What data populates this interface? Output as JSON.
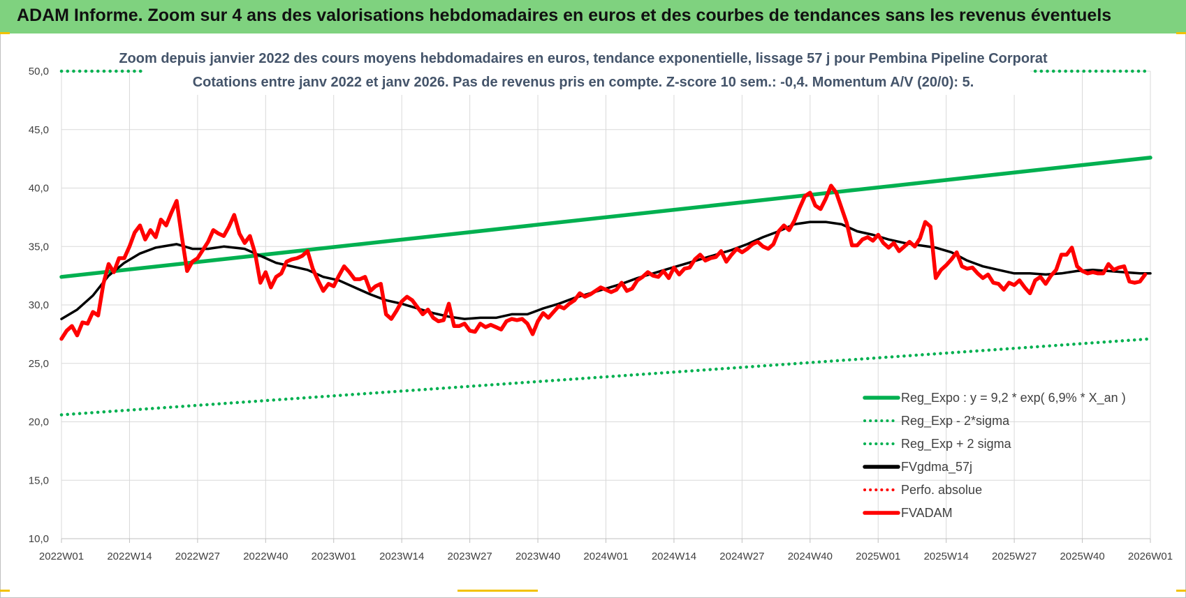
{
  "header": {
    "title": "ADAM Informe. Zoom sur 4 ans des valorisations hebdomadaires en euros et des courbes de tendances sans les revenus éventuels"
  },
  "colors": {
    "banner": "#7fd27f",
    "reg_green": "#00b050",
    "gdma": "#000000",
    "price": "#ff0000",
    "title_text": "#44546a"
  },
  "chart_data": {
    "type": "line",
    "title_line1": "Zoom depuis janvier 2022 des cours moyens hebdomadaires en euros, tendance exponentielle, lissage 57 j pour Pembina Pipeline Corporat",
    "title_line2": "Cotations entre janv 2022 et janv 2026. Pas de revenus pris en compte. Z-score 10 sem.: -0,4. Momentum A/V (20/0): 5.",
    "ylim": [
      10,
      50
    ],
    "ytick_values": [
      10,
      15,
      20,
      25,
      30,
      35,
      40,
      45,
      50
    ],
    "yticks": [
      "10,0",
      "15,0",
      "20,0",
      "25,0",
      "30,0",
      "35,0",
      "40,0",
      "45,0",
      "50,0"
    ],
    "x_range_weeks": [
      0,
      208
    ],
    "xtick_weeks": [
      0,
      13,
      26,
      39,
      52,
      65,
      78,
      91,
      104,
      117,
      130,
      143,
      156,
      169,
      182,
      195,
      208
    ],
    "xticks": [
      "2022W01",
      "2022W14",
      "2022W27",
      "2022W40",
      "2023W01",
      "2023W14",
      "2023W27",
      "2023W40",
      "2024W01",
      "2024W14",
      "2024W27",
      "2024W40",
      "2025W01",
      "2025W14",
      "2025W27",
      "2025W40",
      "2026W01"
    ],
    "legend_position": "bottom-right",
    "grid": true,
    "series": [
      {
        "name": "Reg_Expo : y = 9,2 * exp( 6,9% *  X_an )",
        "style": "solid",
        "color": "#00b050",
        "points": [
          [
            0,
            32.4
          ],
          [
            208,
            42.6
          ]
        ]
      },
      {
        "name": "Reg_Exp - 2*sigma",
        "style": "dotted",
        "color": "#00b050",
        "points": [
          [
            0,
            20.6
          ],
          [
            208,
            27.1
          ]
        ]
      },
      {
        "name": "Reg_Exp + 2 sigma",
        "style": "dotted",
        "color": "#00b050",
        "points": [
          [
            0,
            50.0
          ],
          [
            16,
            50.0
          ],
          [
            186,
            50.0
          ],
          [
            208,
            50.0
          ]
        ]
      },
      {
        "name": "FVgdma_57j",
        "style": "solid",
        "color": "#000000",
        "points": [
          [
            0,
            28.8
          ],
          [
            3,
            29.6
          ],
          [
            6,
            30.8
          ],
          [
            9,
            32.5
          ],
          [
            12,
            33.6
          ],
          [
            15,
            34.4
          ],
          [
            18,
            34.9
          ],
          [
            22,
            35.2
          ],
          [
            25,
            34.8
          ],
          [
            28,
            34.8
          ],
          [
            31,
            35.0
          ],
          [
            35,
            34.8
          ],
          [
            38,
            34.2
          ],
          [
            41,
            33.6
          ],
          [
            44,
            33.3
          ],
          [
            47,
            33.0
          ],
          [
            50,
            32.4
          ],
          [
            53,
            32.1
          ],
          [
            56,
            31.5
          ],
          [
            59,
            30.9
          ],
          [
            62,
            30.4
          ],
          [
            65,
            30.1
          ],
          [
            68,
            29.7
          ],
          [
            71,
            29.3
          ],
          [
            74,
            29.0
          ],
          [
            77,
            28.8
          ],
          [
            80,
            28.9
          ],
          [
            83,
            28.9
          ],
          [
            86,
            29.2
          ],
          [
            89,
            29.2
          ],
          [
            92,
            29.7
          ],
          [
            95,
            30.1
          ],
          [
            98,
            30.6
          ],
          [
            101,
            31.0
          ],
          [
            104,
            31.4
          ],
          [
            107,
            31.8
          ],
          [
            110,
            32.3
          ],
          [
            113,
            32.7
          ],
          [
            116,
            33.1
          ],
          [
            119,
            33.5
          ],
          [
            122,
            33.9
          ],
          [
            125,
            34.3
          ],
          [
            128,
            34.7
          ],
          [
            131,
            35.2
          ],
          [
            134,
            35.8
          ],
          [
            137,
            36.3
          ],
          [
            140,
            36.9
          ],
          [
            143,
            37.1
          ],
          [
            146,
            37.1
          ],
          [
            149,
            36.9
          ],
          [
            152,
            36.3
          ],
          [
            155,
            36.0
          ],
          [
            158,
            35.6
          ],
          [
            161,
            35.3
          ],
          [
            164,
            35.1
          ],
          [
            167,
            34.9
          ],
          [
            170,
            34.5
          ],
          [
            173,
            33.8
          ],
          [
            176,
            33.3
          ],
          [
            179,
            33.0
          ],
          [
            182,
            32.7
          ],
          [
            185,
            32.7
          ],
          [
            188,
            32.6
          ],
          [
            191,
            32.7
          ],
          [
            194,
            32.9
          ],
          [
            197,
            33.0
          ],
          [
            200,
            32.9
          ],
          [
            203,
            32.8
          ],
          [
            206,
            32.7
          ],
          [
            208,
            32.7
          ]
        ]
      },
      {
        "name": "Perfo. absolue",
        "style": "dotted",
        "color": "#ff0000",
        "points": []
      },
      {
        "name": "FVADAM",
        "style": "solid",
        "color": "#ff0000",
        "points": [
          [
            0,
            27.1
          ],
          [
            1,
            27.8
          ],
          [
            2,
            28.2
          ],
          [
            3,
            27.4
          ],
          [
            4,
            28.5
          ],
          [
            5,
            28.4
          ],
          [
            6,
            29.4
          ],
          [
            7,
            29.1
          ],
          [
            8,
            31.8
          ],
          [
            9,
            33.5
          ],
          [
            10,
            32.8
          ],
          [
            11,
            34.0
          ],
          [
            12,
            34.0
          ],
          [
            13,
            35.0
          ],
          [
            14,
            36.2
          ],
          [
            15,
            36.8
          ],
          [
            16,
            35.6
          ],
          [
            17,
            36.4
          ],
          [
            18,
            35.8
          ],
          [
            19,
            37.3
          ],
          [
            20,
            36.8
          ],
          [
            21,
            37.9
          ],
          [
            22,
            38.9
          ],
          [
            23,
            35.8
          ],
          [
            24,
            32.9
          ],
          [
            25,
            33.7
          ],
          [
            26,
            34.0
          ],
          [
            27,
            34.7
          ],
          [
            28,
            35.4
          ],
          [
            29,
            36.4
          ],
          [
            30,
            36.1
          ],
          [
            31,
            35.9
          ],
          [
            32,
            36.7
          ],
          [
            33,
            37.7
          ],
          [
            34,
            36.1
          ],
          [
            35,
            35.3
          ],
          [
            36,
            35.9
          ],
          [
            37,
            34.4
          ],
          [
            38,
            31.9
          ],
          [
            39,
            32.8
          ],
          [
            40,
            31.5
          ],
          [
            41,
            32.4
          ],
          [
            42,
            32.7
          ],
          [
            43,
            33.7
          ],
          [
            44,
            33.9
          ],
          [
            45,
            34.0
          ],
          [
            46,
            34.2
          ],
          [
            47,
            34.6
          ],
          [
            48,
            33.1
          ],
          [
            49,
            32.1
          ],
          [
            50,
            31.2
          ],
          [
            51,
            31.8
          ],
          [
            52,
            31.6
          ],
          [
            53,
            32.5
          ],
          [
            54,
            33.3
          ],
          [
            55,
            32.8
          ],
          [
            56,
            32.2
          ],
          [
            57,
            32.2
          ],
          [
            58,
            32.4
          ],
          [
            59,
            31.2
          ],
          [
            60,
            31.6
          ],
          [
            61,
            31.8
          ],
          [
            62,
            29.2
          ],
          [
            63,
            28.8
          ],
          [
            64,
            29.5
          ],
          [
            65,
            30.3
          ],
          [
            66,
            30.7
          ],
          [
            67,
            30.4
          ],
          [
            68,
            29.8
          ],
          [
            69,
            29.2
          ],
          [
            70,
            29.6
          ],
          [
            71,
            28.9
          ],
          [
            72,
            28.6
          ],
          [
            73,
            28.7
          ],
          [
            74,
            30.1
          ],
          [
            75,
            28.2
          ],
          [
            76,
            28.2
          ],
          [
            77,
            28.4
          ],
          [
            78,
            27.8
          ],
          [
            79,
            27.7
          ],
          [
            80,
            28.4
          ],
          [
            81,
            28.1
          ],
          [
            82,
            28.3
          ],
          [
            83,
            28.1
          ],
          [
            84,
            27.9
          ],
          [
            85,
            28.6
          ],
          [
            86,
            28.8
          ],
          [
            87,
            28.7
          ],
          [
            88,
            28.8
          ],
          [
            89,
            28.4
          ],
          [
            90,
            27.5
          ],
          [
            91,
            28.6
          ],
          [
            92,
            29.3
          ],
          [
            93,
            28.9
          ],
          [
            94,
            29.4
          ],
          [
            95,
            29.9
          ],
          [
            96,
            29.7
          ],
          [
            97,
            30.1
          ],
          [
            98,
            30.4
          ],
          [
            99,
            31.0
          ],
          [
            100,
            30.7
          ],
          [
            101,
            30.9
          ],
          [
            102,
            31.2
          ],
          [
            103,
            31.5
          ],
          [
            104,
            31.3
          ],
          [
            105,
            31.1
          ],
          [
            106,
            31.3
          ],
          [
            107,
            31.9
          ],
          [
            108,
            31.2
          ],
          [
            109,
            31.4
          ],
          [
            110,
            32.1
          ],
          [
            111,
            32.4
          ],
          [
            112,
            32.8
          ],
          [
            113,
            32.5
          ],
          [
            114,
            32.4
          ],
          [
            115,
            32.9
          ],
          [
            116,
            32.3
          ],
          [
            117,
            33.2
          ],
          [
            118,
            32.6
          ],
          [
            119,
            33.1
          ],
          [
            120,
            33.2
          ],
          [
            121,
            33.9
          ],
          [
            122,
            34.3
          ],
          [
            123,
            33.8
          ],
          [
            124,
            34.0
          ],
          [
            125,
            34.1
          ],
          [
            126,
            34.6
          ],
          [
            127,
            33.7
          ],
          [
            128,
            34.3
          ],
          [
            129,
            34.8
          ],
          [
            130,
            34.5
          ],
          [
            131,
            34.8
          ],
          [
            132,
            35.2
          ],
          [
            133,
            35.4
          ],
          [
            134,
            35.0
          ],
          [
            135,
            34.8
          ],
          [
            136,
            35.2
          ],
          [
            137,
            36.3
          ],
          [
            138,
            36.8
          ],
          [
            139,
            36.4
          ],
          [
            140,
            37.2
          ],
          [
            141,
            38.3
          ],
          [
            142,
            39.3
          ],
          [
            143,
            39.6
          ],
          [
            144,
            38.5
          ],
          [
            145,
            38.2
          ],
          [
            146,
            39.1
          ],
          [
            147,
            40.2
          ],
          [
            148,
            39.6
          ],
          [
            149,
            38.3
          ],
          [
            150,
            37.0
          ],
          [
            151,
            35.1
          ],
          [
            152,
            35.1
          ],
          [
            153,
            35.6
          ],
          [
            154,
            35.8
          ],
          [
            155,
            35.5
          ],
          [
            156,
            36.0
          ],
          [
            157,
            35.3
          ],
          [
            158,
            34.9
          ],
          [
            159,
            35.3
          ],
          [
            160,
            34.6
          ],
          [
            161,
            35.0
          ],
          [
            162,
            35.4
          ],
          [
            163,
            35.0
          ],
          [
            164,
            35.7
          ],
          [
            165,
            37.1
          ],
          [
            166,
            36.7
          ],
          [
            167,
            32.3
          ],
          [
            168,
            33.0
          ],
          [
            169,
            33.4
          ],
          [
            170,
            33.9
          ],
          [
            171,
            34.5
          ],
          [
            172,
            33.3
          ],
          [
            173,
            33.1
          ],
          [
            174,
            33.2
          ],
          [
            175,
            32.7
          ],
          [
            176,
            32.3
          ],
          [
            177,
            32.6
          ],
          [
            178,
            31.9
          ],
          [
            179,
            31.8
          ],
          [
            180,
            31.3
          ],
          [
            181,
            31.9
          ],
          [
            182,
            31.7
          ],
          [
            183,
            32.1
          ],
          [
            184,
            31.5
          ],
          [
            185,
            31.0
          ],
          [
            186,
            32.1
          ],
          [
            187,
            32.4
          ],
          [
            188,
            31.8
          ],
          [
            189,
            32.5
          ],
          [
            190,
            33.0
          ],
          [
            191,
            34.3
          ],
          [
            192,
            34.3
          ],
          [
            193,
            34.9
          ],
          [
            194,
            33.3
          ],
          [
            195,
            32.9
          ],
          [
            196,
            32.7
          ],
          [
            197,
            32.8
          ],
          [
            198,
            32.7
          ],
          [
            199,
            32.7
          ],
          [
            200,
            33.5
          ],
          [
            201,
            33.0
          ],
          [
            202,
            33.2
          ],
          [
            203,
            33.3
          ],
          [
            204,
            32.0
          ],
          [
            205,
            31.9
          ],
          [
            206,
            32.0
          ],
          [
            207,
            32.6
          ]
        ]
      }
    ]
  }
}
